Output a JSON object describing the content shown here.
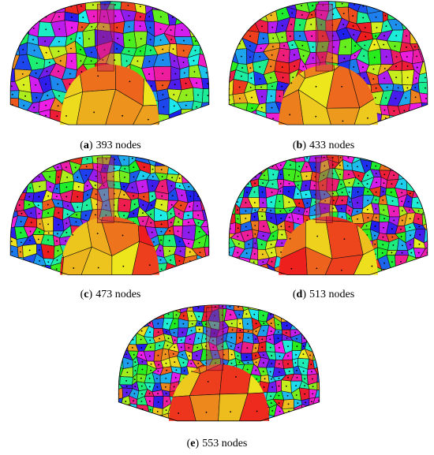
{
  "figure": {
    "panels": [
      {
        "label": "(a)",
        "caption": "393 nodes"
      },
      {
        "label": "(b)",
        "caption": "433 nodes"
      },
      {
        "label": "(c)",
        "caption": "473 nodes"
      },
      {
        "label": "(d)",
        "caption": "513 nodes"
      },
      {
        "label": "(e)",
        "caption": "553 nodes"
      }
    ]
  }
}
